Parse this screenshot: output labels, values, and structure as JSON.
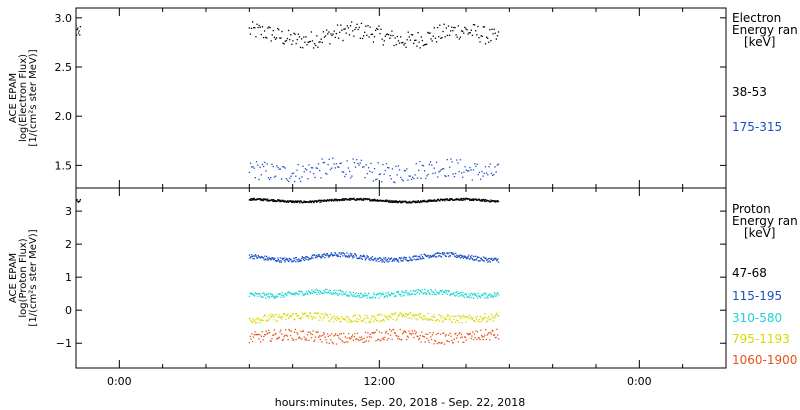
{
  "chart_data": [
    {
      "type": "scatter",
      "title": "",
      "ylabel_lines": [
        "ACE EPAM",
        "log(Electron Flux)",
        "[1/(cm²s ster MeV)]"
      ],
      "ylim": [
        1.27,
        3.1
      ],
      "yticks": [
        {
          "value": 1.5,
          "label": "1.5"
        },
        {
          "value": 2.0,
          "label": "2.0"
        },
        {
          "value": 2.5,
          "label": "2.5"
        },
        {
          "value": 3.0,
          "label": "3.0"
        }
      ],
      "legend_title_lines": [
        "Electron",
        "Energy ran",
        "[keV]"
      ],
      "series": [
        {
          "name": "38-53",
          "color": "#000000",
          "start_h": 6.0,
          "end_h": 17.5,
          "mean": 2.82,
          "amp": 0.05,
          "noise": 0.09,
          "count": 230
        },
        {
          "name": "175-315",
          "color": "#1a4fc4",
          "start_h": 6.0,
          "end_h": 17.5,
          "mean": 1.45,
          "amp": 0.03,
          "noise": 0.1,
          "count": 210
        }
      ],
      "early_fragment": {
        "color": "#000000",
        "start_h": -2.0,
        "end_h": -1.8,
        "mean": 2.87,
        "noise": 0.06,
        "count": 8
      }
    },
    {
      "type": "scatter",
      "title": "",
      "ylabel_lines": [
        "ACE EPAM",
        "log(Proton Flux)",
        "[1/(cm²s ster MeV)]"
      ],
      "ylim": [
        -1.75,
        3.7
      ],
      "yticks": [
        {
          "value": -1,
          "label": "−1"
        },
        {
          "value": 0,
          "label": "0"
        },
        {
          "value": 1,
          "label": "1"
        },
        {
          "value": 2,
          "label": "2"
        },
        {
          "value": 3,
          "label": "3"
        }
      ],
      "legend_title_lines": [
        "Proton",
        "Energy ran",
        "[keV]"
      ],
      "series": [
        {
          "name": "47-68",
          "color": "#000000",
          "start_h": 6.0,
          "end_h": 17.5,
          "mean": 3.32,
          "amp": 0.04,
          "noise": 0.03,
          "count": 520
        },
        {
          "name": "115-195",
          "color": "#1a4fc4",
          "start_h": 6.0,
          "end_h": 17.5,
          "mean": 1.6,
          "amp": 0.08,
          "noise": 0.07,
          "count": 420
        },
        {
          "name": "310-580",
          "color": "#1fd4d4",
          "start_h": 6.0,
          "end_h": 17.5,
          "mean": 0.5,
          "amp": 0.06,
          "noise": 0.08,
          "count": 380
        },
        {
          "name": "795-1193",
          "color": "#d8d800",
          "start_h": 6.0,
          "end_h": 17.5,
          "mean": -0.22,
          "amp": 0.05,
          "noise": 0.12,
          "count": 330
        },
        {
          "name": "1060-1900",
          "color": "#e2541a",
          "start_h": 6.0,
          "end_h": 17.5,
          "mean": -0.8,
          "amp": 0.06,
          "noise": 0.17,
          "count": 310
        }
      ],
      "early_fragment": {
        "color": "#000000",
        "start_h": -2.0,
        "end_h": -1.8,
        "mean": 3.3,
        "noise": 0.05,
        "count": 8
      }
    }
  ],
  "x_axis": {
    "range_hours": [
      -2.0,
      28.0
    ],
    "major_ticks": [
      {
        "value": 0,
        "label": "0:00"
      },
      {
        "value": 12,
        "label": "12:00"
      },
      {
        "value": 24,
        "label": "0:00"
      }
    ],
    "minor_step_hours": 2,
    "label": "hours:minutes, Sep. 20, 2018 - Sep. 22, 2018"
  }
}
